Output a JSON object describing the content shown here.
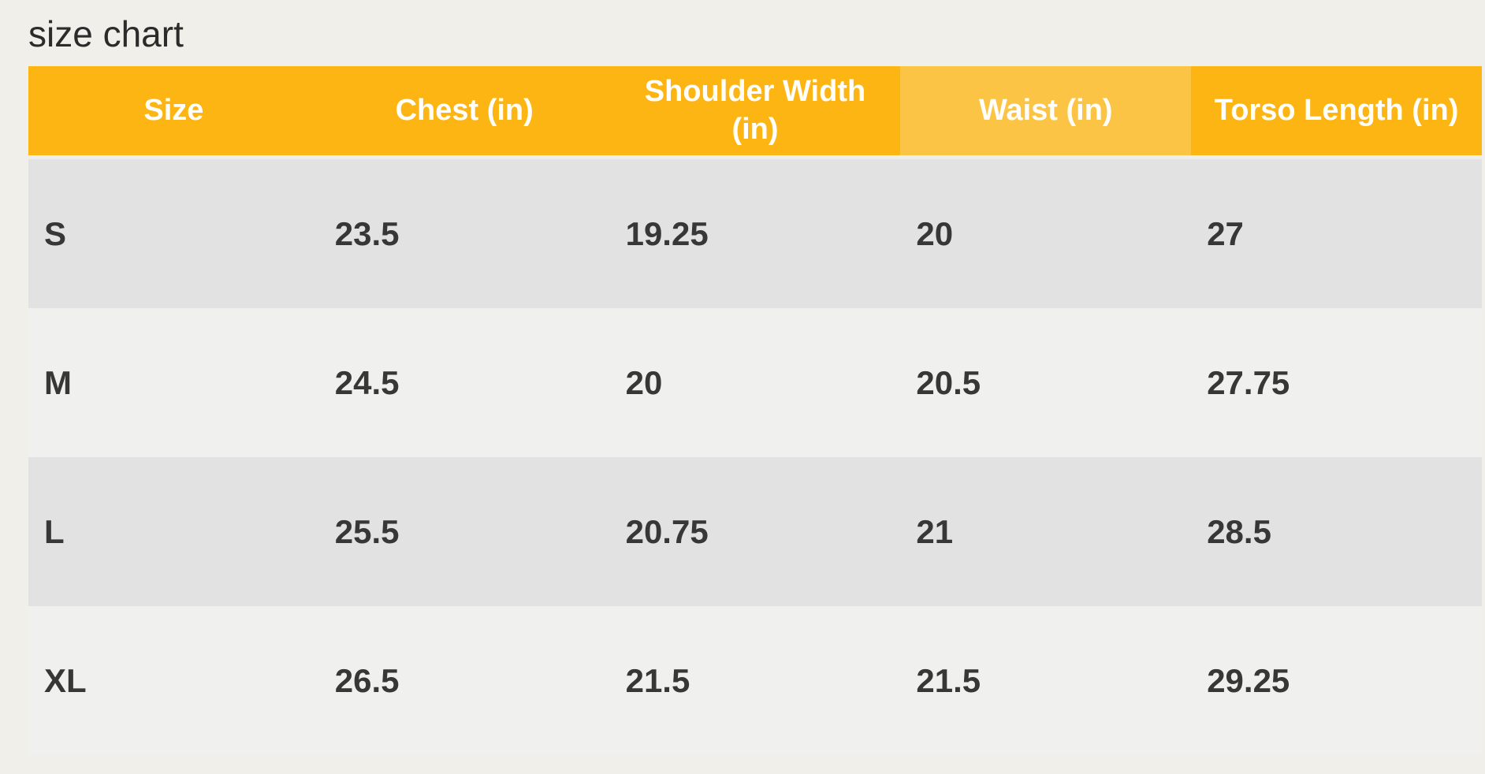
{
  "page": {
    "title": "size chart"
  },
  "colors": {
    "page_background": "#f1efe9",
    "header_yellow": "#fcb512",
    "header_yellow_highlight": "#fcc445",
    "row_dark": "#e2e2e2",
    "row_light": "#f0f0ee",
    "header_text": "#fffefb",
    "cell_text": "#373737",
    "title_text": "#2b2b2b"
  },
  "table": {
    "headers": [
      "Size",
      "Chest (in)",
      "Shoulder Width\n(in)",
      "Waist (in)",
      "Torso Length (in)"
    ],
    "rows": [
      {
        "cells": [
          "S",
          "23.5",
          "19.25",
          "20",
          "27"
        ]
      },
      {
        "cells": [
          "M",
          "24.5",
          "20",
          "20.5",
          "27.75"
        ]
      },
      {
        "cells": [
          "L",
          "25.5",
          "20.75",
          "21",
          "28.5"
        ]
      },
      {
        "cells": [
          "XL",
          "26.5",
          "21.5",
          "21.5",
          "29.25"
        ]
      }
    ]
  },
  "chart_data": {
    "type": "table",
    "title": "size chart",
    "columns": [
      "Size",
      "Chest (in)",
      "Shoulder Width (in)",
      "Waist (in)",
      "Torso Length (in)"
    ],
    "highlighted_column": "Waist (in)",
    "rows": [
      {
        "size": "S",
        "chest_in": 23.5,
        "shoulder_width_in": 19.25,
        "waist_in": 20,
        "torso_length_in": 27
      },
      {
        "size": "M",
        "chest_in": 24.5,
        "shoulder_width_in": 20,
        "waist_in": 20.5,
        "torso_length_in": 27.75
      },
      {
        "size": "L",
        "chest_in": 25.5,
        "shoulder_width_in": 20.75,
        "waist_in": 21,
        "torso_length_in": 28.5
      },
      {
        "size": "XL",
        "chest_in": 26.5,
        "shoulder_width_in": 21.5,
        "waist_in": 21.5,
        "torso_length_in": 29.25
      }
    ]
  }
}
